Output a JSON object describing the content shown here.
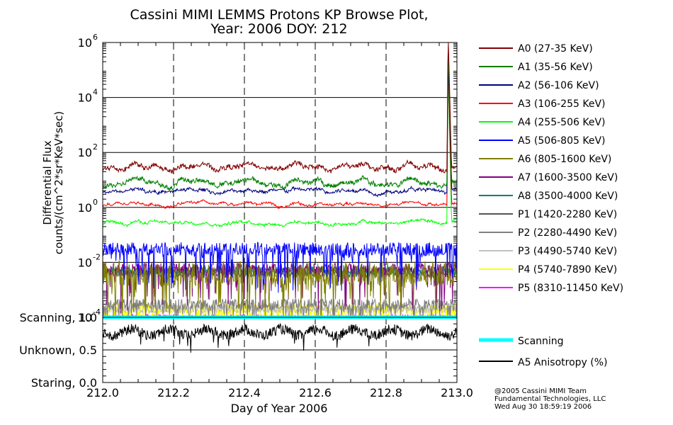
{
  "chart_data": {
    "type": "line",
    "title": "Cassini MIMI LEMMS Protons KP Browse Plot,",
    "subtitle": "Year: 2006 DOY: 212",
    "xlabel": "Day of Year 2006",
    "ylabel": "Differential Flux",
    "ylabel2": "counts/(cm^2*sr*KeV*sec)",
    "xlim": [
      212.0,
      213.0
    ],
    "x_ticks": [
      "212.0",
      "212.2",
      "212.4",
      "212.6",
      "212.8",
      "213.0"
    ],
    "x_tick_values": [
      212.0,
      212.2,
      212.4,
      212.6,
      212.8,
      213.0
    ],
    "y_scale": "log",
    "ylim": [
      0.0001,
      1000000
    ],
    "y_tick_values": [
      0.0001,
      0.01,
      1,
      100,
      10000,
      1000000
    ],
    "y_tick_mantissa": [
      "10",
      "10",
      "10",
      "10",
      "10",
      "10"
    ],
    "y_tick_exponent": [
      "-4",
      "-2",
      "0",
      "2",
      "4",
      "6"
    ],
    "grid": true,
    "legend_position": "right",
    "series": [
      {
        "name": "A0 (27-35 KeV)",
        "color": "#800000",
        "base": 30,
        "spread": 0.15,
        "spike": 3000000
      },
      {
        "name": "A1 (35-56 KeV)",
        "color": "#008000",
        "base": 8,
        "spread": 0.15,
        "spike": 800000
      },
      {
        "name": "A2 (56-106 KeV)",
        "color": "#000080",
        "base": 4,
        "spread": 0.08,
        "spike": 300000
      },
      {
        "name": "A3 (106-255 KeV)",
        "color": "#ff0000",
        "base": 1.3,
        "spread": 0.05,
        "spike": 200000
      },
      {
        "name": "A4 (255-506 KeV)",
        "color": "#00ff00",
        "base": 0.28,
        "spread": 0.06,
        "spike": 100000
      },
      {
        "name": "A5 (506-805 KeV)",
        "color": "#0000ff",
        "base": 0.03,
        "spread": 0.5,
        "spike": null
      },
      {
        "name": "A6 (805-1600 KeV)",
        "color": "#808000",
        "base": 0.004,
        "spread": 0.9,
        "spike": null
      },
      {
        "name": "A7 (1600-3500 KeV)",
        "color": "#800080",
        "base": 0.006,
        "spread": 0.4,
        "spike": null
      },
      {
        "name": "A8 (3500-4000 KeV)",
        "color": "#008080",
        "base": 0.005,
        "spread": 0.3,
        "spike": null
      },
      {
        "name": "P1 (1420-2280 KeV)",
        "color": "#555555",
        "base": 0.004,
        "spread": 0.3,
        "spike": null
      },
      {
        "name": "P2 (2280-4490 KeV)",
        "color": "#808080",
        "base": 0.0003,
        "spread": 0.4,
        "spike": null
      },
      {
        "name": "P3 (4490-5740 KeV)",
        "color": "#c0c0c0",
        "base": 0.0002,
        "spread": 0.3,
        "spike": null
      },
      {
        "name": "P4 (5740-7890 KeV)",
        "color": "#ffff00",
        "base": 0.0002,
        "spread": 0.4,
        "spike": null
      },
      {
        "name": "P5 (8310-11450 KeV)",
        "color": "#ff00ff",
        "base": 0.0001,
        "spread": 0.2,
        "spike": null
      }
    ],
    "lower_panel": {
      "y_ticks": [
        "Scanning, 1.0",
        "Unknown, 0.5",
        "Staring, 0.0"
      ],
      "y_tick_values": [
        1.0,
        0.5,
        0.0
      ],
      "ylim": [
        0.0,
        1.0
      ],
      "series": [
        {
          "name": "Scanning",
          "color": "#00ffff",
          "value": 1.0
        },
        {
          "name": "A5 Anisotropy (%)",
          "color": "#000000",
          "mean": 0.77,
          "spread": 0.08
        }
      ]
    }
  },
  "credit": {
    "line1": "@2005 Cassini MIMI Team",
    "line2": "Fundamental Technologies, LLC",
    "line3": "Wed Aug 30 18:59:19 2006"
  }
}
